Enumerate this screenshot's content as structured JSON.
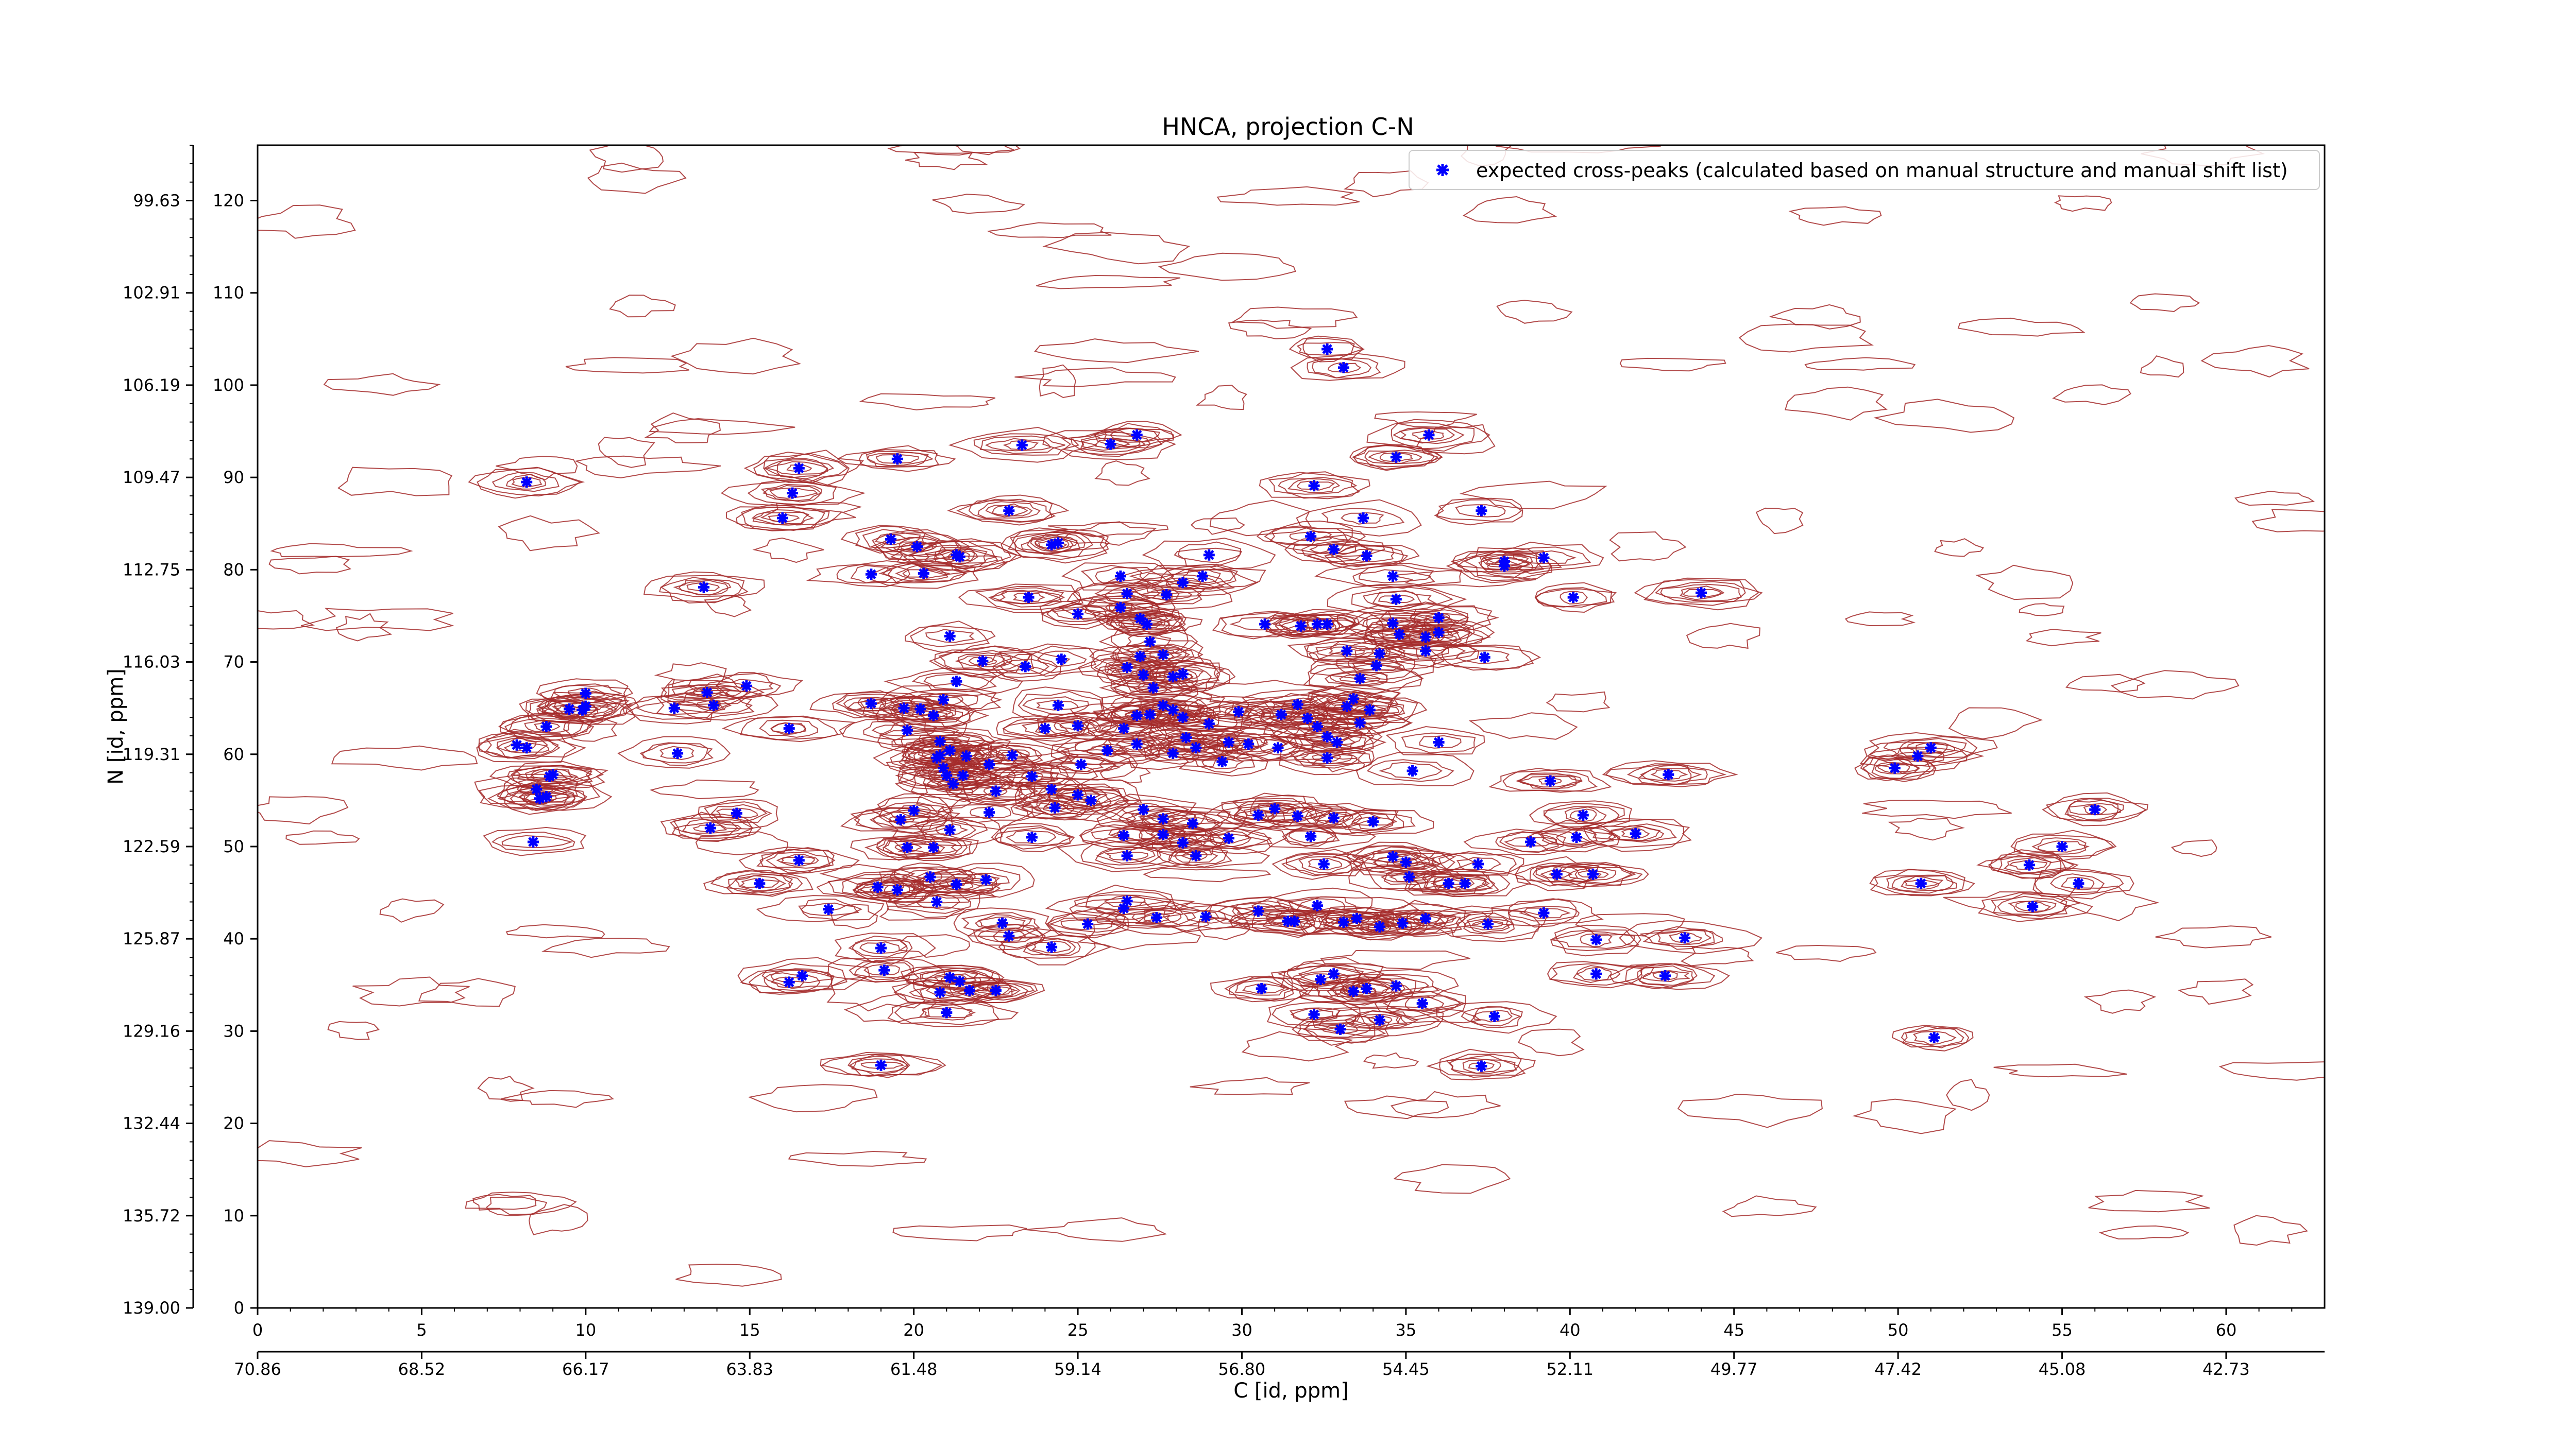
{
  "chart_data": {
    "type": "scatter",
    "title": "HNCA, projection C-N",
    "xlabel": "C [id, ppm]",
    "ylabel": "N [id, ppm]",
    "xlim": [
      0,
      63
    ],
    "ylim": [
      0,
      126
    ],
    "x_ticks": [
      0,
      5,
      10,
      15,
      20,
      25,
      30,
      35,
      40,
      45,
      50,
      55,
      60
    ],
    "y_ticks": [
      0,
      10,
      20,
      30,
      40,
      50,
      60,
      70,
      80,
      90,
      100,
      110,
      120
    ],
    "x_ppm_labels": [
      "70.86",
      "68.52",
      "66.17",
      "63.83",
      "61.48",
      "59.14",
      "56.80",
      "54.45",
      "52.11",
      "49.77",
      "47.42",
      "45.08",
      "42.73"
    ],
    "y_ppm_labels": [
      "139.00",
      "135.72",
      "132.44",
      "129.16",
      "125.87",
      "122.59",
      "119.31",
      "116.03",
      "112.75",
      "109.47",
      "106.19",
      "102.91",
      "99.63"
    ],
    "legend_label": "expected cross-peaks (calculated based on manual structure and manual shift list)",
    "legend_position": "top-right",
    "marker_color": "#0000ff",
    "contour_color": "#a52a2a",
    "series": [
      {
        "name": "expected cross-peaks (calculated based on manual structure and manual shift list)",
        "points": [
          [
            8.2,
            89.5
          ],
          [
            16.5,
            91
          ],
          [
            16.3,
            88.3
          ],
          [
            16.0,
            85.6
          ],
          [
            19.5,
            92
          ],
          [
            23.3,
            93.5
          ],
          [
            22.9,
            86.4
          ],
          [
            26.0,
            93.6
          ],
          [
            26.8,
            94.6
          ],
          [
            32.6,
            103.9
          ],
          [
            33.1,
            101.9
          ],
          [
            34.7,
            92.2
          ],
          [
            35.7,
            94.6
          ],
          [
            37.3,
            86.4
          ],
          [
            33.7,
            85.6
          ],
          [
            32.2,
            89.1
          ],
          [
            18.7,
            79.5
          ],
          [
            19.3,
            83.3
          ],
          [
            20.1,
            82.5
          ],
          [
            20.3,
            79.6
          ],
          [
            21.3,
            81.6
          ],
          [
            21.4,
            81.4
          ],
          [
            24.2,
            82.7
          ],
          [
            24.4,
            82.9
          ],
          [
            23.5,
            77.0
          ],
          [
            25.0,
            75.2
          ],
          [
            26.3,
            79.3
          ],
          [
            26.3,
            75.9
          ],
          [
            26.5,
            77.4
          ],
          [
            26.9,
            74.7
          ],
          [
            28.2,
            78.6
          ],
          [
            29.0,
            81.6
          ],
          [
            28.8,
            79.3
          ],
          [
            27.7,
            77.3
          ],
          [
            32.1,
            83.6
          ],
          [
            32.8,
            82.2
          ],
          [
            33.8,
            81.5
          ],
          [
            34.6,
            79.3
          ],
          [
            34.7,
            76.8
          ],
          [
            36.0,
            73.2
          ],
          [
            38.0,
            80.4
          ],
          [
            38.0,
            80.9
          ],
          [
            39.2,
            81.3
          ],
          [
            40.1,
            77.0
          ],
          [
            44.0,
            77.5
          ],
          [
            37.4,
            70.5
          ],
          [
            13.6,
            78.1
          ],
          [
            21.1,
            72.8
          ],
          [
            22.1,
            70.1
          ],
          [
            23.4,
            69.5
          ],
          [
            24.5,
            70.3
          ],
          [
            26.5,
            69.4
          ],
          [
            26.9,
            70.6
          ],
          [
            27.2,
            72.2
          ],
          [
            27.1,
            74.1
          ],
          [
            27.0,
            68.6
          ],
          [
            27.3,
            67.2
          ],
          [
            27.6,
            70.8
          ],
          [
            27.9,
            68.4
          ],
          [
            28.2,
            68.7
          ],
          [
            30.7,
            74.1
          ],
          [
            31.8,
            73.9
          ],
          [
            32.3,
            74.1
          ],
          [
            32.6,
            74.1
          ],
          [
            33.2,
            71.2
          ],
          [
            33.6,
            68.2
          ],
          [
            34.1,
            69.6
          ],
          [
            34.2,
            70.9
          ],
          [
            34.6,
            74.2
          ],
          [
            34.8,
            73.0
          ],
          [
            35.6,
            72.7
          ],
          [
            35.6,
            71.2
          ],
          [
            36.0,
            74.8
          ],
          [
            8.2,
            60.7
          ],
          [
            8.5,
            56.2
          ],
          [
            8.6,
            55.2
          ],
          [
            8.9,
            57.6
          ],
          [
            9.0,
            57.8
          ],
          [
            8.8,
            55.4
          ],
          [
            8.8,
            63.0
          ],
          [
            9.5,
            64.9
          ],
          [
            9.9,
            64.8
          ],
          [
            10.0,
            66.6
          ],
          [
            10.0,
            65.2
          ],
          [
            12.7,
            65.0
          ],
          [
            13.7,
            66.7
          ],
          [
            13.9,
            65.3
          ],
          [
            12.8,
            60.1
          ],
          [
            14.9,
            67.4
          ],
          [
            16.2,
            62.8
          ],
          [
            18.7,
            65.5
          ],
          [
            19.8,
            62.6
          ],
          [
            19.7,
            65.0
          ],
          [
            20.2,
            64.9
          ],
          [
            20.6,
            64.2
          ],
          [
            20.8,
            61.4
          ],
          [
            20.7,
            59.6
          ],
          [
            20.9,
            58.5
          ],
          [
            21.0,
            57.7
          ],
          [
            21.2,
            56.8
          ],
          [
            20.8,
            59.9
          ],
          [
            21.1,
            60.4
          ],
          [
            21.6,
            59.8
          ],
          [
            21.5,
            57.7
          ],
          [
            22.3,
            58.9
          ],
          [
            22.5,
            56.0
          ],
          [
            23.0,
            59.9
          ],
          [
            23.6,
            57.6
          ],
          [
            24.0,
            62.8
          ],
          [
            24.4,
            65.3
          ],
          [
            25.0,
            63.1
          ],
          [
            25.1,
            58.9
          ],
          [
            25.9,
            60.4
          ],
          [
            26.4,
            62.8
          ],
          [
            26.8,
            64.2
          ],
          [
            26.8,
            61.1
          ],
          [
            27.2,
            64.3
          ],
          [
            27.6,
            65.3
          ],
          [
            27.9,
            64.8
          ],
          [
            28.2,
            64.0
          ],
          [
            28.3,
            61.8
          ],
          [
            27.9,
            60.1
          ],
          [
            28.6,
            60.7
          ],
          [
            29.0,
            63.3
          ],
          [
            29.4,
            59.2
          ],
          [
            29.6,
            61.3
          ],
          [
            29.9,
            64.6
          ],
          [
            30.2,
            61.1
          ],
          [
            31.1,
            60.7
          ],
          [
            31.2,
            64.3
          ],
          [
            31.7,
            65.4
          ],
          [
            32.0,
            63.9
          ],
          [
            32.3,
            63.0
          ],
          [
            32.6,
            61.9
          ],
          [
            32.9,
            61.3
          ],
          [
            32.6,
            59.6
          ],
          [
            33.2,
            65.2
          ],
          [
            33.4,
            66.0
          ],
          [
            33.6,
            63.4
          ],
          [
            33.9,
            64.8
          ],
          [
            35.2,
            58.2
          ],
          [
            36.0,
            61.3
          ],
          [
            20.9,
            65.9
          ],
          [
            21.3,
            67.9
          ],
          [
            7.9,
            61.0
          ],
          [
            8.4,
            50.5
          ],
          [
            13.8,
            52.0
          ],
          [
            14.6,
            53.6
          ],
          [
            16.5,
            48.5
          ],
          [
            19.6,
            52.9
          ],
          [
            19.8,
            49.9
          ],
          [
            20.0,
            53.9
          ],
          [
            20.6,
            49.9
          ],
          [
            21.1,
            51.8
          ],
          [
            22.3,
            53.7
          ],
          [
            23.6,
            51.0
          ],
          [
            24.3,
            54.2
          ],
          [
            24.2,
            56.2
          ],
          [
            25.0,
            55.6
          ],
          [
            25.4,
            55.0
          ],
          [
            26.4,
            51.2
          ],
          [
            26.5,
            49.0
          ],
          [
            27.0,
            54.0
          ],
          [
            27.6,
            51.3
          ],
          [
            27.6,
            53.0
          ],
          [
            28.2,
            50.4
          ],
          [
            28.5,
            52.5
          ],
          [
            28.6,
            49.0
          ],
          [
            29.6,
            50.9
          ],
          [
            30.5,
            53.4
          ],
          [
            31.0,
            54.1
          ],
          [
            31.7,
            53.3
          ],
          [
            32.1,
            51.1
          ],
          [
            32.5,
            48.1
          ],
          [
            32.8,
            53.1
          ],
          [
            34.0,
            52.7
          ],
          [
            34.6,
            48.9
          ],
          [
            35.0,
            48.3
          ],
          [
            35.1,
            46.7
          ],
          [
            36.8,
            46.0
          ],
          [
            37.2,
            48.1
          ],
          [
            38.8,
            50.5
          ],
          [
            39.6,
            47.0
          ],
          [
            40.2,
            51.0
          ],
          [
            40.7,
            47.0
          ],
          [
            42.0,
            51.4
          ],
          [
            39.4,
            57.1
          ],
          [
            40.4,
            53.4
          ],
          [
            43.0,
            57.8
          ],
          [
            49.9,
            58.5
          ],
          [
            50.6,
            59.8
          ],
          [
            51.0,
            60.7
          ],
          [
            50.7,
            46.0
          ],
          [
            54.0,
            48.0
          ],
          [
            55.0,
            50.0
          ],
          [
            55.5,
            46.0
          ],
          [
            56.0,
            54.0
          ],
          [
            54.1,
            43.5
          ],
          [
            15.3,
            46.0
          ],
          [
            17.4,
            43.2
          ],
          [
            18.9,
            45.6
          ],
          [
            19.5,
            45.3
          ],
          [
            20.5,
            46.7
          ],
          [
            20.7,
            44.0
          ],
          [
            21.3,
            45.9
          ],
          [
            22.2,
            46.4
          ],
          [
            22.7,
            41.7
          ],
          [
            22.9,
            40.3
          ],
          [
            24.2,
            39.1
          ],
          [
            25.3,
            41.6
          ],
          [
            26.4,
            43.3
          ],
          [
            26.5,
            44.1
          ],
          [
            27.4,
            42.3
          ],
          [
            28.9,
            42.4
          ],
          [
            30.5,
            43.0
          ],
          [
            31.4,
            41.9
          ],
          [
            31.6,
            41.9
          ],
          [
            32.3,
            43.6
          ],
          [
            33.1,
            41.8
          ],
          [
            33.5,
            42.2
          ],
          [
            34.2,
            41.3
          ],
          [
            34.9,
            41.7
          ],
          [
            35.6,
            42.2
          ],
          [
            36.3,
            46.0
          ],
          [
            37.5,
            41.6
          ],
          [
            39.2,
            42.8
          ],
          [
            40.8,
            39.9
          ],
          [
            16.2,
            35.3
          ],
          [
            16.6,
            36.0
          ],
          [
            19.0,
            39.0
          ],
          [
            19.1,
            36.6
          ],
          [
            20.8,
            34.2
          ],
          [
            21.1,
            35.8
          ],
          [
            21.4,
            35.4
          ],
          [
            21.7,
            34.4
          ],
          [
            22.5,
            34.4
          ],
          [
            21.0,
            32.0
          ],
          [
            30.6,
            34.6
          ],
          [
            32.2,
            31.8
          ],
          [
            32.4,
            35.6
          ],
          [
            32.8,
            36.2
          ],
          [
            33.4,
            34.3
          ],
          [
            33.8,
            34.6
          ],
          [
            34.2,
            31.2
          ],
          [
            34.7,
            34.9
          ],
          [
            35.5,
            33.0
          ],
          [
            33.0,
            30.2
          ],
          [
            37.7,
            31.6
          ],
          [
            40.8,
            36.2
          ],
          [
            42.9,
            36.0
          ],
          [
            19.0,
            26.3
          ],
          [
            37.3,
            26.2
          ],
          [
            51.1,
            29.3
          ],
          [
            43.5,
            40.1
          ]
        ]
      }
    ]
  }
}
